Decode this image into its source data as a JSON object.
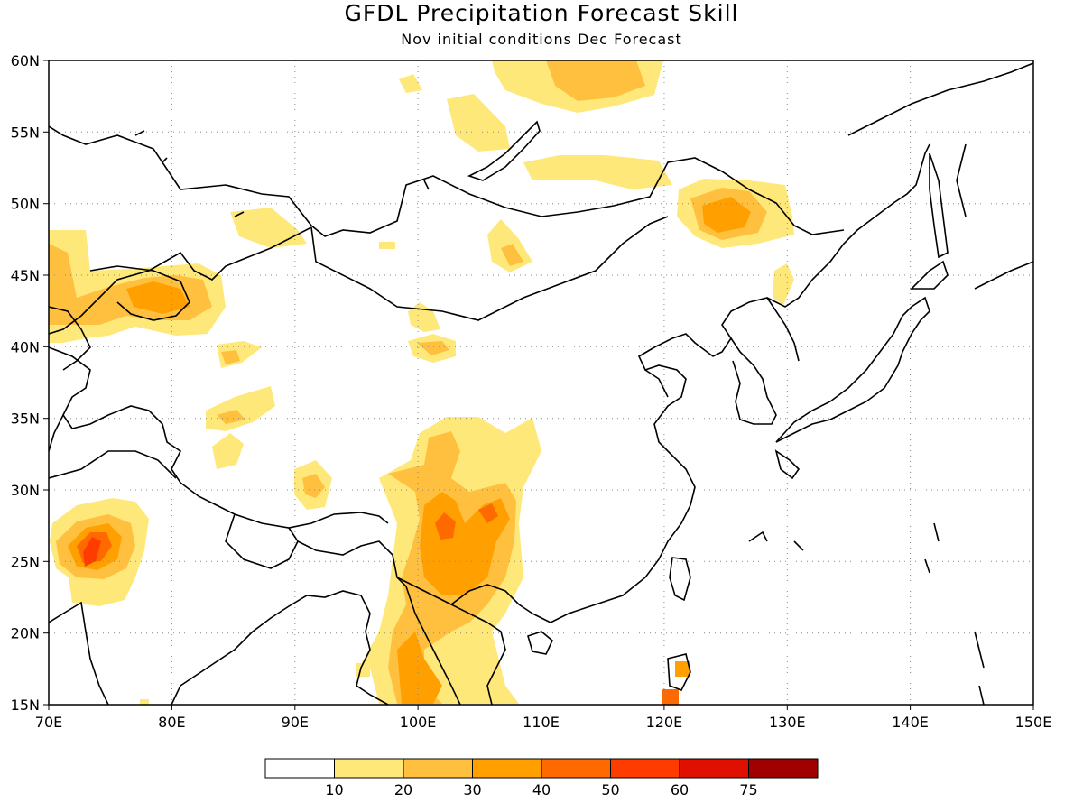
{
  "header": {
    "title": "GFDL Precipitation Forecast Skill",
    "subtitle": "Nov initial conditions  Dec Forecast"
  },
  "map": {
    "lon_range": [
      70,
      150
    ],
    "lat_range": [
      15,
      60
    ],
    "lon_ticks": [
      "70E",
      "80E",
      "90E",
      "100E",
      "110E",
      "120E",
      "130E",
      "140E",
      "150E"
    ],
    "lat_ticks": [
      "15N",
      "20N",
      "25N",
      "30N",
      "35N",
      "40N",
      "45N",
      "50N",
      "55N",
      "60N"
    ],
    "grid": "dotted",
    "shading_regions": [
      {
        "region": "western India",
        "lon": 74,
        "lat": 26.5,
        "max_level": 60
      },
      {
        "region": "Yunnan / Indochina",
        "lon": 102,
        "lat": 27.5,
        "max_level": 40
      },
      {
        "region": "Manchuria",
        "lon": 124.5,
        "lat": 49.5,
        "max_level": 30
      },
      {
        "region": "Lake Baikal south",
        "lon": 113,
        "lat": 58,
        "max_level": 20
      },
      {
        "region": "Kazakhstan",
        "lon": 77,
        "lat": 43.5,
        "max_level": 30
      },
      {
        "region": "Taiwan",
        "lon": 120.5,
        "lat": 15.5,
        "max_level": 50
      }
    ]
  },
  "colorbar": {
    "levels": [
      "10",
      "20",
      "30",
      "40",
      "50",
      "60",
      "75"
    ],
    "colors": [
      "#ffffff",
      "#ffe87a",
      "#ffc040",
      "#ffa000",
      "#ff6a00",
      "#ff3c00",
      "#e01000",
      "#a00000"
    ]
  }
}
